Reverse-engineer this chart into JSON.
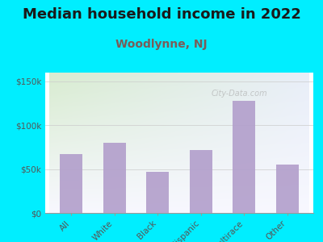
{
  "title": "Median household income in 2022",
  "subtitle": "Woodlynne, NJ",
  "categories": [
    "All",
    "White",
    "Black",
    "Hispanic",
    "Multirace",
    "Other"
  ],
  "values": [
    67000,
    80000,
    47000,
    72000,
    128000,
    55000
  ],
  "bar_color": "#b3a0cc",
  "title_fontsize": 13,
  "subtitle_fontsize": 10,
  "subtitle_color": "#7a5c58",
  "title_color": "#1a1a1a",
  "background_outer": "#00eeff",
  "bg_color_topleft": "#d8ecd0",
  "bg_color_topright": "#e8eef8",
  "bg_color_bottom": "#f5f5ff",
  "axis_color": "#999999",
  "tick_color": "#555555",
  "yticks": [
    0,
    50000,
    100000,
    150000
  ],
  "ytick_labels": [
    "$0",
    "$50k",
    "$100k",
    "$150k"
  ],
  "ylim": [
    0,
    160000
  ],
  "watermark": "City-Data.com"
}
